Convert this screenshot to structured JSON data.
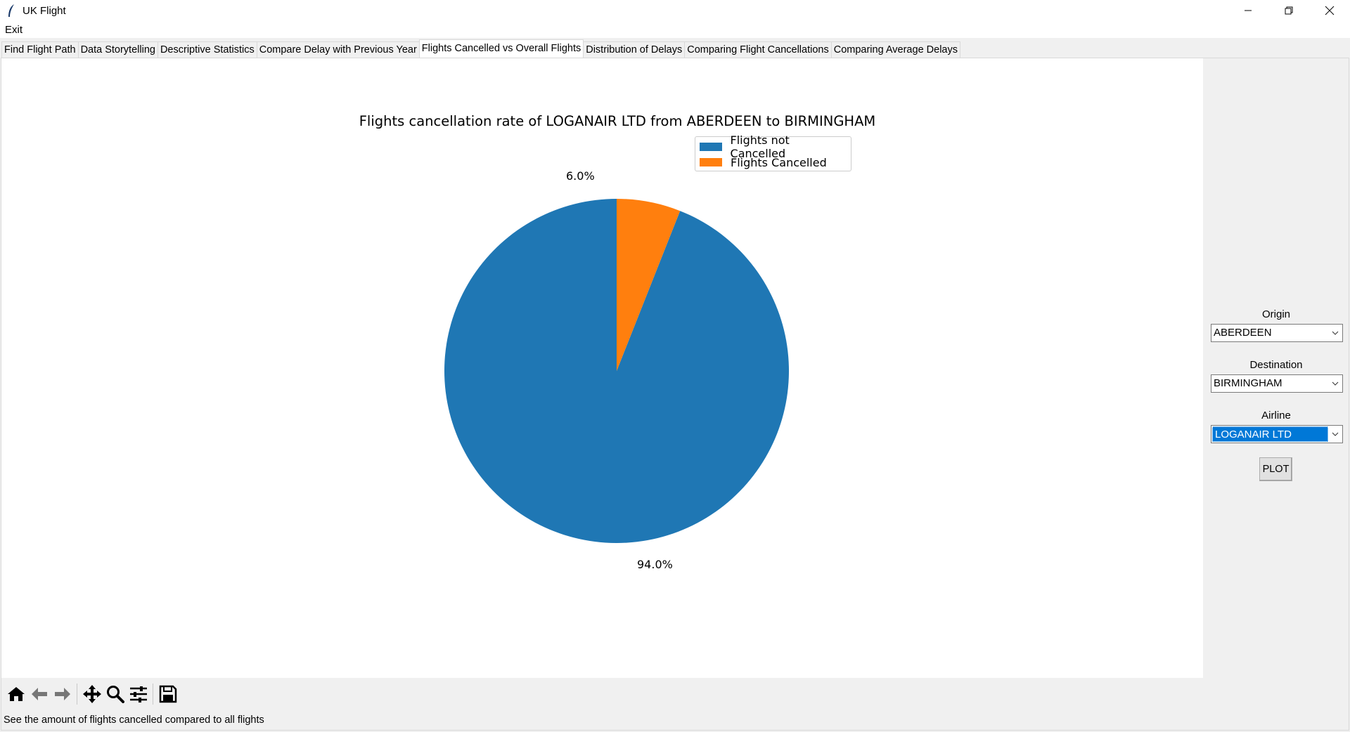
{
  "window": {
    "title": "UK Flight"
  },
  "menu": {
    "items": [
      "Exit"
    ]
  },
  "tabs": [
    "Find Flight Path",
    "Data Storytelling",
    "Descriptive Statistics",
    "Compare Delay with Previous Year",
    "Flights Cancelled vs Overall Flights",
    "Distribution of Delays",
    "Comparing Flight Cancellations",
    "Comparing Average Delays"
  ],
  "active_tab": "Flights Cancelled vs Overall Flights",
  "chart_data": {
    "type": "pie",
    "title": "Flights cancellation rate of LOGANAIR LTD from ABERDEEN to BIRMINGHAM",
    "labels": [
      "Flights not Cancelled",
      "Flights Cancelled"
    ],
    "values": [
      94.0,
      6.0
    ],
    "value_labels": [
      "94.0%",
      "6.0%"
    ],
    "colors": [
      "#1f77b4",
      "#ff7f0e"
    ],
    "legend_placement": "top-right",
    "start_angle": 90,
    "direction": "counterclockwise"
  },
  "controls": {
    "origin": {
      "label": "Origin",
      "value": "ABERDEEN"
    },
    "destination": {
      "label": "Destination",
      "value": "BIRMINGHAM"
    },
    "airline": {
      "label": "Airline",
      "value": "LOGANAIR LTD"
    },
    "plot_button": "PLOT"
  },
  "toolbar": {
    "buttons": [
      "home-icon",
      "back-arrow-icon",
      "forward-arrow-icon",
      "pan-icon",
      "zoom-icon",
      "configure-subplots-icon",
      "save-icon"
    ]
  },
  "status": {
    "message": "See the amount of flights cancelled compared to all flights"
  },
  "colors": {
    "plot_background": "#ffffff",
    "window_background": "#f0f0f0",
    "selection": "#0078d7"
  }
}
